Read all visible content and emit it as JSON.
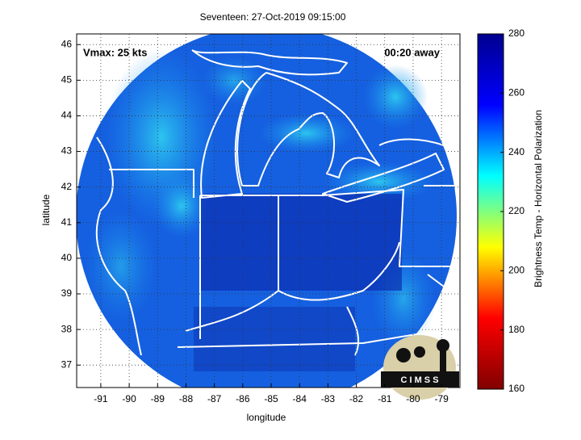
{
  "map": {
    "title": "Seventeen: 27-Oct-2019 09:15:00",
    "xlabel": "longitude",
    "ylabel": "latitude",
    "xlim": [
      -91.85,
      -78.35
    ],
    "ylim": [
      36.37,
      46.3
    ],
    "xticks": [
      -91,
      -90,
      -89,
      -88,
      -87,
      -86,
      -85,
      -84,
      -83,
      -82,
      -81,
      -80,
      -79
    ],
    "yticks": [
      37,
      38,
      39,
      40,
      41,
      42,
      43,
      44,
      45,
      46
    ],
    "grid": true,
    "annotations": [
      "Vmax: 25 kts",
      "00:20 away"
    ],
    "logo": "C I M S S"
  },
  "colorbar": {
    "label": "Brightness Temp - Horizontal Polarization",
    "lim": [
      160,
      280
    ],
    "ticks": [
      160,
      180,
      200,
      220,
      240,
      260,
      280
    ],
    "colormap": [
      "#800000",
      "#ff0000",
      "#ffff00",
      "#00ffff",
      "#0000ff",
      "#00008f"
    ]
  }
}
